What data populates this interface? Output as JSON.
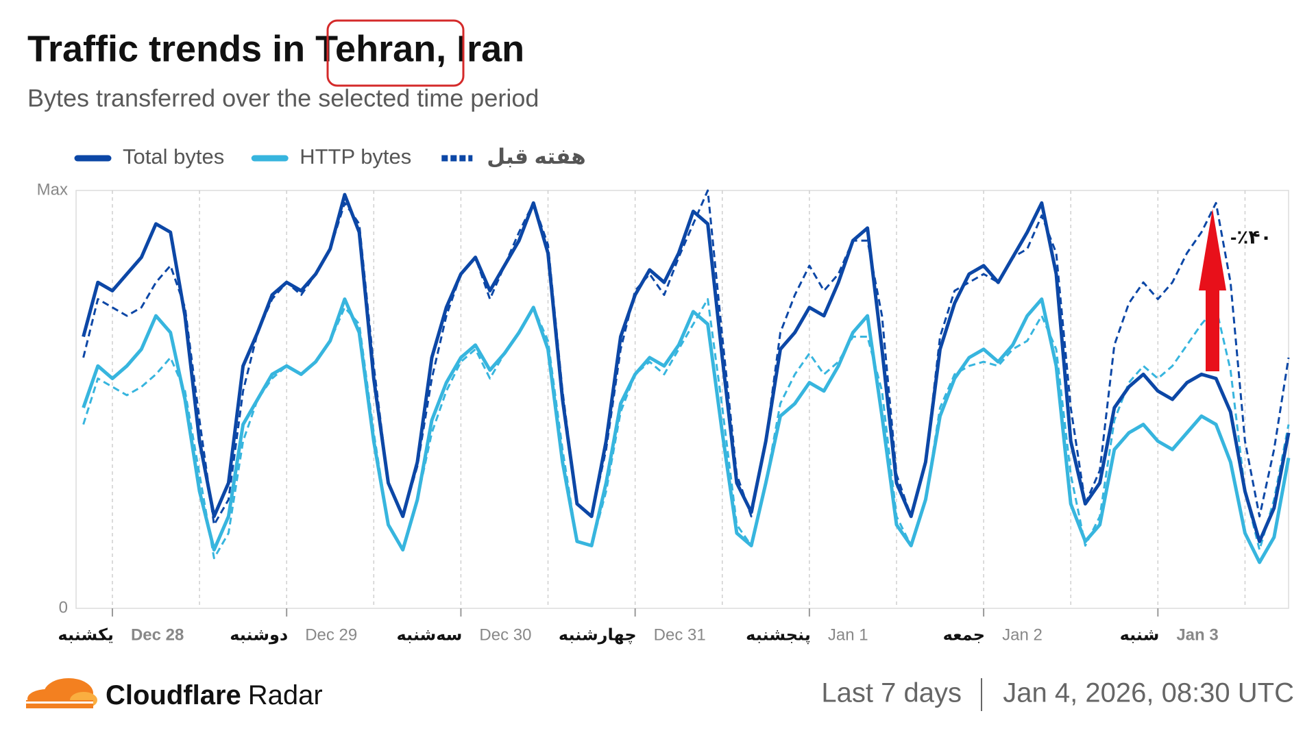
{
  "chart_data": {
    "type": "line",
    "title": "Traffic trends in Tehran, Iran",
    "subtitle": "Bytes transferred over the selected time period",
    "x": [
      -4,
      -2,
      0,
      2,
      4,
      6,
      8,
      10,
      12,
      14,
      16,
      18,
      20,
      22,
      24,
      26,
      28,
      30,
      32,
      34,
      36,
      38,
      40,
      42,
      44,
      46,
      48,
      50,
      52,
      54,
      56,
      58,
      60,
      62,
      64,
      66,
      68,
      70,
      72,
      74,
      76,
      78,
      80,
      82,
      84,
      86,
      88,
      90,
      92,
      94,
      96,
      98,
      100,
      102,
      104,
      106,
      108,
      110,
      112,
      114,
      116,
      118,
      120,
      122,
      124,
      126,
      128,
      130,
      132,
      134,
      136,
      138,
      140,
      142,
      144,
      146,
      148,
      150,
      152,
      154,
      156,
      158,
      160,
      162
    ],
    "xlim": [
      -5,
      162
    ],
    "xticks": [
      {
        "value": 0,
        "label": "Dec 28"
      },
      {
        "value": 24,
        "label": "Dec 29"
      },
      {
        "value": 48,
        "label": "Dec 30"
      },
      {
        "value": 72,
        "label": "Dec 31"
      },
      {
        "value": 96,
        "label": "Jan 1"
      },
      {
        "value": 120,
        "label": "Jan 2"
      },
      {
        "value": 144,
        "label": "Jan 3"
      }
    ],
    "weekday_labels": [
      "یکشنبه",
      "دوشنبه",
      "سه‌شنبه",
      "چهارشنبه",
      "پنجشنبه",
      "جمعه",
      "شنبه"
    ],
    "ylim": [
      0,
      100
    ],
    "yticks": [
      0,
      {
        "value": 100,
        "label": "Max"
      }
    ],
    "series": [
      {
        "name": "Total bytes",
        "color": "#0c47a6",
        "dashed": false,
        "values": [
          65,
          78,
          76,
          80,
          84,
          92,
          90,
          70,
          40,
          22,
          30,
          58,
          66,
          75,
          78,
          76,
          80,
          86,
          99,
          90,
          55,
          30,
          22,
          35,
          60,
          72,
          80,
          84,
          76,
          82,
          88,
          97,
          85,
          50,
          25,
          22,
          40,
          65,
          75,
          81,
          78,
          85,
          95,
          92,
          60,
          30,
          23,
          40,
          62,
          66,
          72,
          70,
          78,
          88,
          91,
          62,
          30,
          22,
          35,
          62,
          73,
          80,
          82,
          78,
          84,
          90,
          97,
          80,
          40,
          25,
          30,
          48,
          53,
          56,
          52,
          50,
          54,
          56,
          55,
          47,
          28,
          16,
          24,
          42
        ]
      },
      {
        "name": "HTTP bytes",
        "color": "#37b5de",
        "dashed": false,
        "values": [
          48,
          58,
          55,
          58,
          62,
          70,
          66,
          50,
          28,
          14,
          22,
          44,
          50,
          56,
          58,
          56,
          59,
          64,
          74,
          66,
          40,
          20,
          14,
          26,
          45,
          54,
          60,
          63,
          57,
          61,
          66,
          72,
          62,
          35,
          16,
          15,
          30,
          49,
          56,
          60,
          58,
          63,
          71,
          68,
          42,
          18,
          15,
          30,
          46,
          49,
          54,
          52,
          58,
          66,
          70,
          46,
          20,
          15,
          26,
          46,
          55,
          60,
          62,
          59,
          63,
          70,
          74,
          58,
          25,
          16,
          20,
          38,
          42,
          44,
          40,
          38,
          42,
          46,
          44,
          35,
          18,
          11,
          17,
          36
        ]
      },
      {
        "name": "هفته قبل",
        "color": "#0c47a6",
        "dashed": true,
        "values": [
          60,
          74,
          72,
          70,
          72,
          78,
          82,
          72,
          45,
          20,
          26,
          52,
          66,
          74,
          78,
          75,
          80,
          86,
          97,
          92,
          58,
          30,
          22,
          34,
          55,
          70,
          80,
          84,
          74,
          82,
          90,
          97,
          87,
          52,
          25,
          22,
          38,
          62,
          76,
          80,
          75,
          84,
          92,
          100,
          65,
          32,
          22,
          40,
          66,
          75,
          82,
          76,
          80,
          88,
          88,
          70,
          32,
          22,
          35,
          65,
          76,
          78,
          80,
          78,
          84,
          86,
          94,
          85,
          48,
          25,
          33,
          63,
          73,
          78,
          74,
          78,
          85,
          90,
          97,
          78,
          40,
          22,
          38,
          60
        ]
      },
      {
        "color": "#37b5de",
        "dashed": true,
        "values": [
          44,
          55,
          53,
          51,
          53,
          56,
          60,
          52,
          32,
          12,
          18,
          40,
          50,
          55,
          58,
          56,
          59,
          64,
          72,
          68,
          42,
          20,
          14,
          26,
          42,
          52,
          59,
          62,
          55,
          61,
          66,
          72,
          64,
          38,
          16,
          15,
          28,
          47,
          56,
          59,
          56,
          62,
          68,
          74,
          48,
          20,
          15,
          30,
          49,
          56,
          61,
          56,
          59,
          65,
          65,
          52,
          22,
          15,
          26,
          48,
          56,
          58,
          59,
          58,
          62,
          64,
          70,
          62,
          32,
          15,
          22,
          45,
          54,
          58,
          55,
          58,
          63,
          68,
          72,
          57,
          28,
          14,
          26,
          44
        ]
      }
    ],
    "annotation": "-٪۴۰",
    "footer": {
      "brand_bold": "Cloudflare",
      "brand": "Radar",
      "period": "Last 7 days",
      "timestamp": "Jan 4, 2026, 08:30 UTC"
    }
  }
}
